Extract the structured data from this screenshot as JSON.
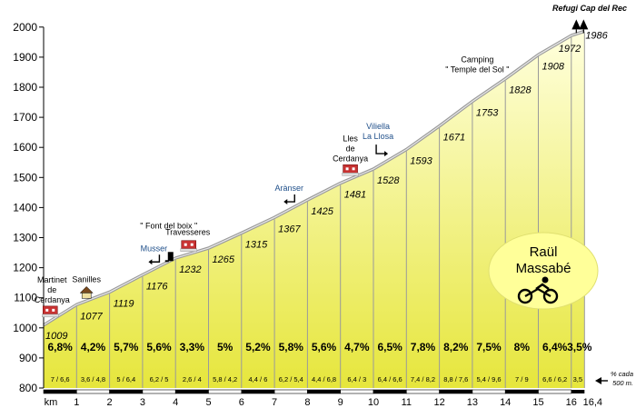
{
  "chart_data": {
    "type": "area",
    "title": "",
    "xlabel": "km",
    "ylabel": "",
    "xlim": [
      0,
      16.4
    ],
    "ylim": [
      800,
      2000
    ],
    "yticks": [
      800,
      900,
      1000,
      1100,
      1200,
      1300,
      1400,
      1500,
      1600,
      1700,
      1800,
      1900,
      2000
    ],
    "xticks": [
      "km",
      "1",
      "2",
      "3",
      "4",
      "5",
      "6",
      "7",
      "8",
      "9",
      "10",
      "11",
      "12",
      "13",
      "14",
      "15",
      "16",
      "16,4"
    ],
    "points": [
      {
        "km": 0,
        "alt": 1009
      },
      {
        "km": 1,
        "alt": 1077
      },
      {
        "km": 2,
        "alt": 1119
      },
      {
        "km": 3,
        "alt": 1176
      },
      {
        "km": 4,
        "alt": 1232
      },
      {
        "km": 5,
        "alt": 1265
      },
      {
        "km": 6,
        "alt": 1315
      },
      {
        "km": 7,
        "alt": 1367
      },
      {
        "km": 8,
        "alt": 1425
      },
      {
        "km": 9,
        "alt": 1481
      },
      {
        "km": 10,
        "alt": 1528
      },
      {
        "km": 11,
        "alt": 1593
      },
      {
        "km": 12,
        "alt": 1671
      },
      {
        "km": 13,
        "alt": 1753
      },
      {
        "km": 14,
        "alt": 1828
      },
      {
        "km": 15,
        "alt": 1908
      },
      {
        "km": 16,
        "alt": 1972
      },
      {
        "km": 16.4,
        "alt": 1986
      }
    ],
    "gradients": [
      "6,8%",
      "4,2%",
      "5,7%",
      "5,6%",
      "3,3%",
      "5%",
      "5,2%",
      "5,8%",
      "5,6%",
      "4,7%",
      "6,5%",
      "7,8%",
      "8,2%",
      "7,5%",
      "8%",
      "6,4%",
      "3,5%"
    ],
    "partial_gradients": [
      "7 / 6,6",
      "3,6 / 4,8",
      "5 / 6,4",
      "6,2 / 5",
      "2,6 / 4",
      "5,8 / 4,2",
      "4,4 / 6",
      "6,2 / 5,4",
      "4,4 / 6,8",
      "6,4 / 3",
      "6,4 / 6,6",
      "7,4 / 8,2",
      "8,8 / 7,6",
      "5,4 / 9,6",
      "7 / 9",
      "6,6 / 6,2",
      "3,5"
    ],
    "legend_note": [
      "% cada",
      "500 m."
    ],
    "summit_label": "Refugi Cap del Rec",
    "places": [
      {
        "km": 0.2,
        "alt": 1030,
        "lines": [
          "Martinet",
          "de",
          "Cerdanya"
        ],
        "icon": "town-icon",
        "color": "#000000"
      },
      {
        "km": 1.3,
        "alt": 1098,
        "lines": [
          "Sanilles"
        ],
        "icon": "house-icon",
        "color": "#000000"
      },
      {
        "km": 3.4,
        "alt": 1195,
        "lines": [
          "Musser"
        ],
        "icon": "left-arrow-icon",
        "color": "#1f4f8a"
      },
      {
        "km": 3.85,
        "alt": 1210,
        "lines": [
          "\" Font del boix \""
        ],
        "icon": "fountain-icon",
        "color": "#000000"
      },
      {
        "km": 4.4,
        "alt": 1248,
        "lines": [
          "Travesseres"
        ],
        "icon": "town-icon",
        "color": "#000000"
      },
      {
        "km": 7.5,
        "alt": 1395,
        "lines": [
          "Arànser"
        ],
        "icon": "left-arrow-icon",
        "color": "#1f4f8a"
      },
      {
        "km": 9.3,
        "alt": 1500,
        "lines": [
          "Lles",
          "de",
          "Cerdanya"
        ],
        "icon": "town-icon",
        "color": "#000000"
      },
      {
        "km": 10.25,
        "alt": 1555,
        "lines": [
          "Viliella",
          "La Llosa"
        ],
        "icon": "right-arrow-icon",
        "color": "#1f4f8a"
      },
      {
        "km": 13.15,
        "alt": 1790,
        "lines": [
          "Camping",
          "\" Temple del Sol \""
        ],
        "icon": "none",
        "color": "#000000"
      }
    ],
    "author_badge": [
      "Raül",
      "Massabé"
    ],
    "colors": {
      "fill_light": "#ffffcc",
      "fill_dark": "#e8e84a",
      "profile_line": "#9a9a9a",
      "segment_line": "#9a9a9a",
      "badge": "#ffff99",
      "km_bar": "#000000",
      "pennant": "#b40000"
    }
  }
}
